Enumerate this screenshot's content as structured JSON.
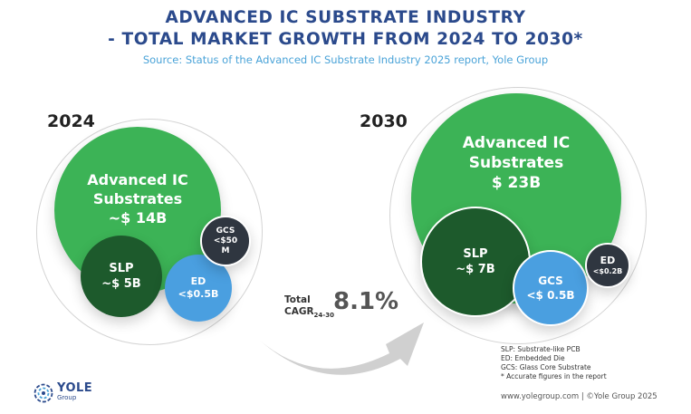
{
  "header": {
    "title_line1": "ADVANCED IC SUBSTRATE INDUSTRY",
    "title_line2": "- TOTAL MARKET GROWTH FROM 2024 TO 2030*",
    "source": "Source: Status of the Advanced IC Substrate Industry 2025 report, Yole Group"
  },
  "left": {
    "year": "2024",
    "main": {
      "line1": "Advanced IC",
      "line2": "Substrates",
      "line3": "~$ 14B"
    },
    "slp": {
      "line1": "SLP",
      "line2": "~$ 5B"
    },
    "ed": {
      "line1": "ED",
      "line2": "<$0.5B"
    },
    "gcs": {
      "line1": "GCS",
      "line2": "<$50",
      "line3": "M"
    }
  },
  "right": {
    "year": "2030",
    "main": {
      "line1": "Advanced IC",
      "line2": "Substrates",
      "line3": "$ 23B"
    },
    "slp": {
      "line1": "SLP",
      "line2": "~$ 7B"
    },
    "gcs": {
      "line1": "GCS",
      "line2": "<$ 0.5B"
    },
    "ed": {
      "line1": "ED",
      "line2": "<$0.2B"
    }
  },
  "growth": {
    "label_line1": "Total",
    "label_line2": "CAGR",
    "label_sub": "24-30",
    "value": "8.1%"
  },
  "notes": [
    "SLP: Substrate-like PCB",
    "ED: Embedded Die",
    "GCS: Glass Core Substrate",
    "* Accurate figures in the report"
  ],
  "footer": "www.yolegroup.com | ©Yole Group 2025",
  "logo": {
    "main": "YOLE",
    "sub": "Group"
  },
  "colors": {
    "title": "#2b4a8c",
    "source": "#4aa3d8",
    "main_green": "#3cb356",
    "dark_green": "#1d5a2c",
    "blue": "#4a9fe0",
    "dark_gray": "#2f3640",
    "arrow": "#cfcfcf"
  }
}
